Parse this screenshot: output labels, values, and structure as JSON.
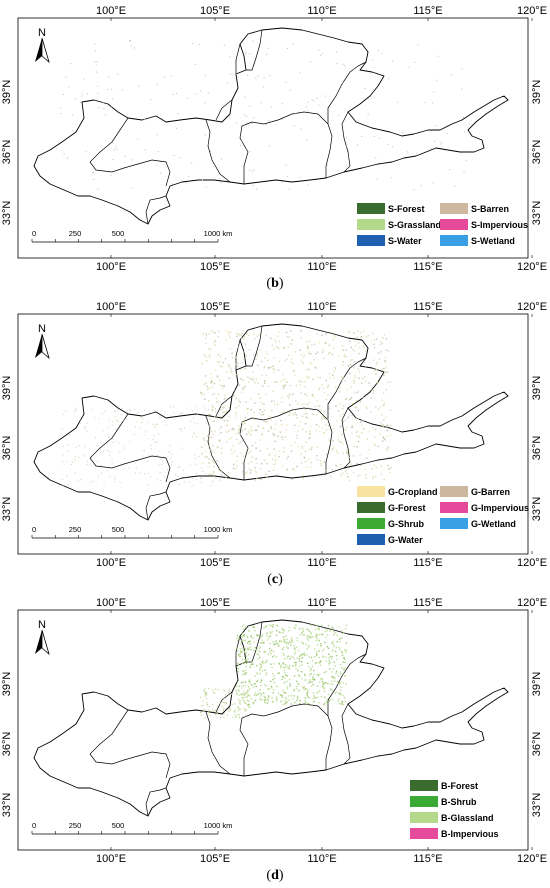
{
  "lon_ticks": [
    "100°E",
    "105°E",
    "110°E",
    "115°E",
    "120°E"
  ],
  "lat_ticks": [
    "39°N",
    "36°N",
    "33°N"
  ],
  "north_label": "N",
  "scale_labels": [
    "0",
    "250",
    "500",
    "1000 km"
  ],
  "panels": [
    {
      "caption": "b",
      "legend": [
        {
          "label": "S-Forest",
          "color": "#3a6b2f"
        },
        {
          "label": "S-Barren",
          "color": "#cdb79e"
        },
        {
          "label": "S-Grassland",
          "color": "#b5d98a"
        },
        {
          "label": "S-Impervious",
          "color": "#e64a9b"
        },
        {
          "label": "S-Water",
          "color": "#1f5fb0"
        },
        {
          "label": "S-Wetland",
          "color": "#3aa0e6"
        }
      ]
    },
    {
      "caption": "c",
      "legend": [
        {
          "label": "G-Cropland",
          "color": "#f8e3a3"
        },
        {
          "label": "G-Barren",
          "color": "#cdb79e"
        },
        {
          "label": "G-Forest",
          "color": "#3a6b2f"
        },
        {
          "label": "G-Impervious",
          "color": "#e64a9b"
        },
        {
          "label": "G-Shrub",
          "color": "#3aaa35"
        },
        {
          "label": "G-Wetland",
          "color": "#3aa0e6"
        },
        {
          "label": "G-Water",
          "color": "#1f5fb0"
        }
      ]
    },
    {
      "caption": "d",
      "legend": [
        {
          "label": "B-Forest",
          "color": "#3a6b2f"
        },
        {
          "label": "B-Shrub",
          "color": "#3aaa35"
        },
        {
          "label": "B-Glassland",
          "color": "#b5d98a"
        },
        {
          "label": "B-Impervious",
          "color": "#e64a9b"
        }
      ]
    }
  ]
}
